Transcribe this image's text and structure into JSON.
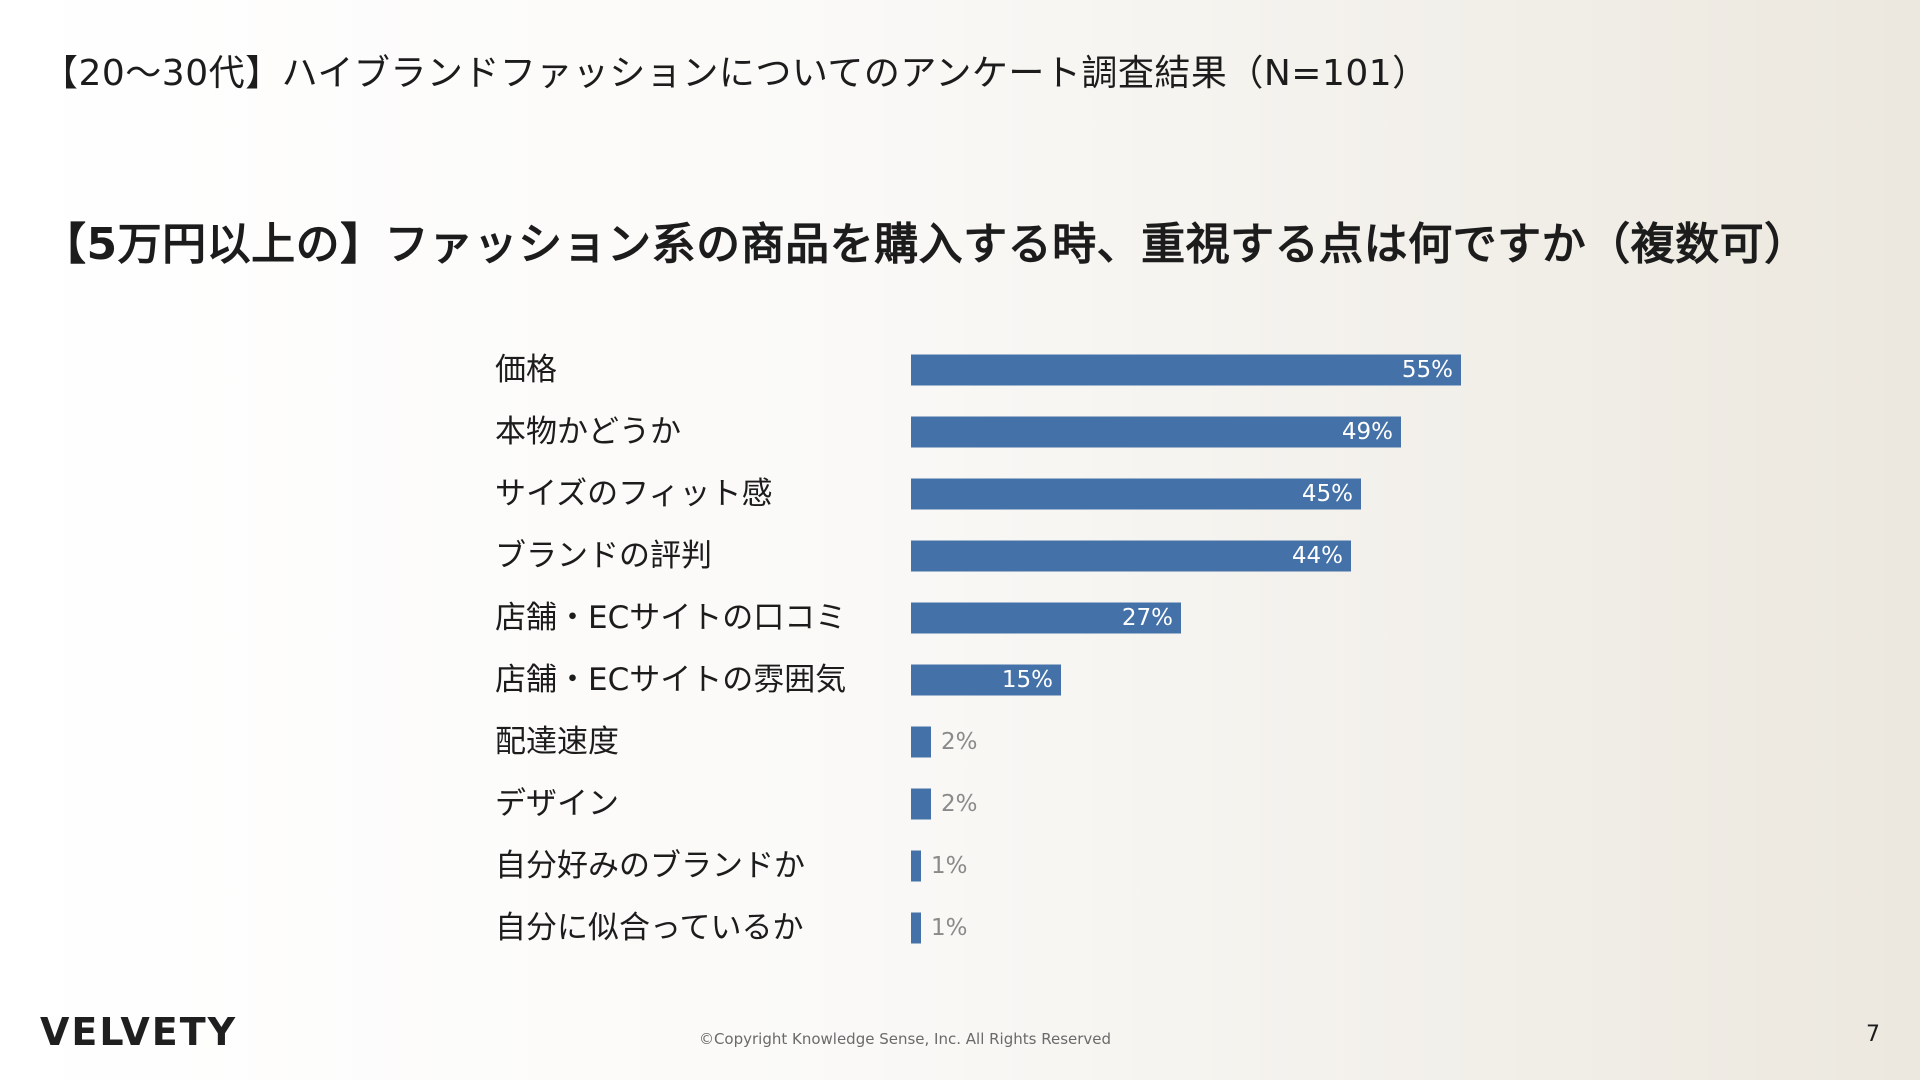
{
  "header": {
    "title": "【20〜30代】ハイブランドファッションについてのアンケート調査結果（N=101）"
  },
  "question": "【5万円以上の】ファッション系の商品を購入する時、重視する点は何ですか（複数可）",
  "chart_data": {
    "type": "bar",
    "orientation": "horizontal",
    "categories": [
      "価格",
      "本物かどうか",
      "サイズのフィット感",
      "ブランドの評判",
      "店舗・ECサイトの口コミ",
      "店舗・ECサイトの雰囲気",
      "配達速度",
      "デザイン",
      "自分好みのブランドか",
      "自分に似合っているか"
    ],
    "values": [
      55,
      49,
      45,
      44,
      27,
      15,
      2,
      2,
      1,
      1
    ],
    "value_labels": [
      "55%",
      "49%",
      "45%",
      "44%",
      "27%",
      "15%",
      "2%",
      "2%",
      "1%",
      "1%"
    ],
    "unit": "%",
    "xlim": [
      0,
      100
    ],
    "grid": false,
    "legend": "none",
    "bar_color": "#4472a8",
    "label_inside_color": "#ffffff",
    "label_outside_color": "#8a8a8a"
  },
  "footer": {
    "logo": "VELVETY",
    "copyright": "©Copyright Knowledge Sense, Inc. All Rights Reserved",
    "page_number": "7"
  }
}
